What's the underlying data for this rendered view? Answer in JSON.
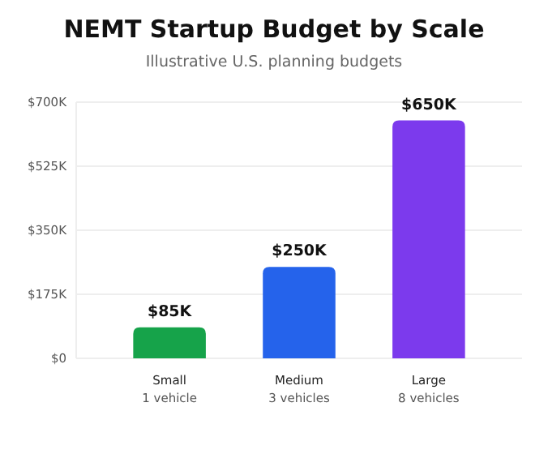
{
  "chart_data": {
    "type": "bar",
    "title": "NEMT Startup Budget by Scale",
    "subtitle": "Illustrative U.S. planning budgets",
    "categories": [
      "Small\n1 vehicle",
      "Medium\n3 vehicles",
      "Large\n8 vehicles"
    ],
    "values": [
      85,
      250,
      650
    ],
    "colors": [
      "#16a34a",
      "#2563eb",
      "#7c3aed"
    ],
    "value_labels": [
      "$85K",
      "$250K",
      "$650K"
    ],
    "ylim": [
      0,
      700
    ],
    "yticks": [
      {
        "value": 0,
        "label": "$0"
      },
      {
        "value": 175,
        "label": "$175K"
      },
      {
        "value": 350,
        "label": "$350K"
      },
      {
        "value": 525,
        "label": "$525K"
      },
      {
        "value": 700,
        "label": "$700K"
      }
    ],
    "grid": "y"
  }
}
